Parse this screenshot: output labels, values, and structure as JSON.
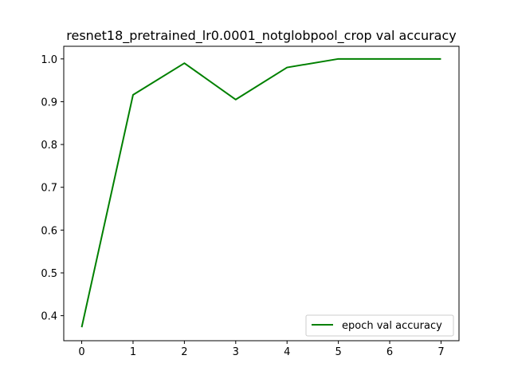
{
  "chart_data": {
    "type": "line",
    "title": "resnet18_pretrained_lr0.0001_notglobpool_crop val accuracy",
    "xlabel": "",
    "ylabel": "",
    "x": [
      0,
      1,
      2,
      3,
      4,
      5,
      6,
      7
    ],
    "series": [
      {
        "name": "epoch val accuracy",
        "color": "#008000",
        "values": [
          0.373,
          0.916,
          0.99,
          0.905,
          0.98,
          1.0,
          1.0,
          1.0
        ]
      }
    ],
    "xlim": [
      -0.35,
      7.35
    ],
    "ylim": [
      0.3415,
      1.0295
    ],
    "xticks": [
      0,
      1,
      2,
      3,
      4,
      5,
      6,
      7
    ],
    "xtick_labels": [
      "0",
      "1",
      "2",
      "3",
      "4",
      "5",
      "6",
      "7"
    ],
    "yticks": [
      0.4,
      0.5,
      0.6,
      0.7,
      0.8,
      0.9,
      1.0
    ],
    "ytick_labels": [
      "0.4",
      "0.5",
      "0.6",
      "0.7",
      "0.8",
      "0.9",
      "1.0"
    ],
    "grid": false,
    "legend_position": "lower right"
  }
}
